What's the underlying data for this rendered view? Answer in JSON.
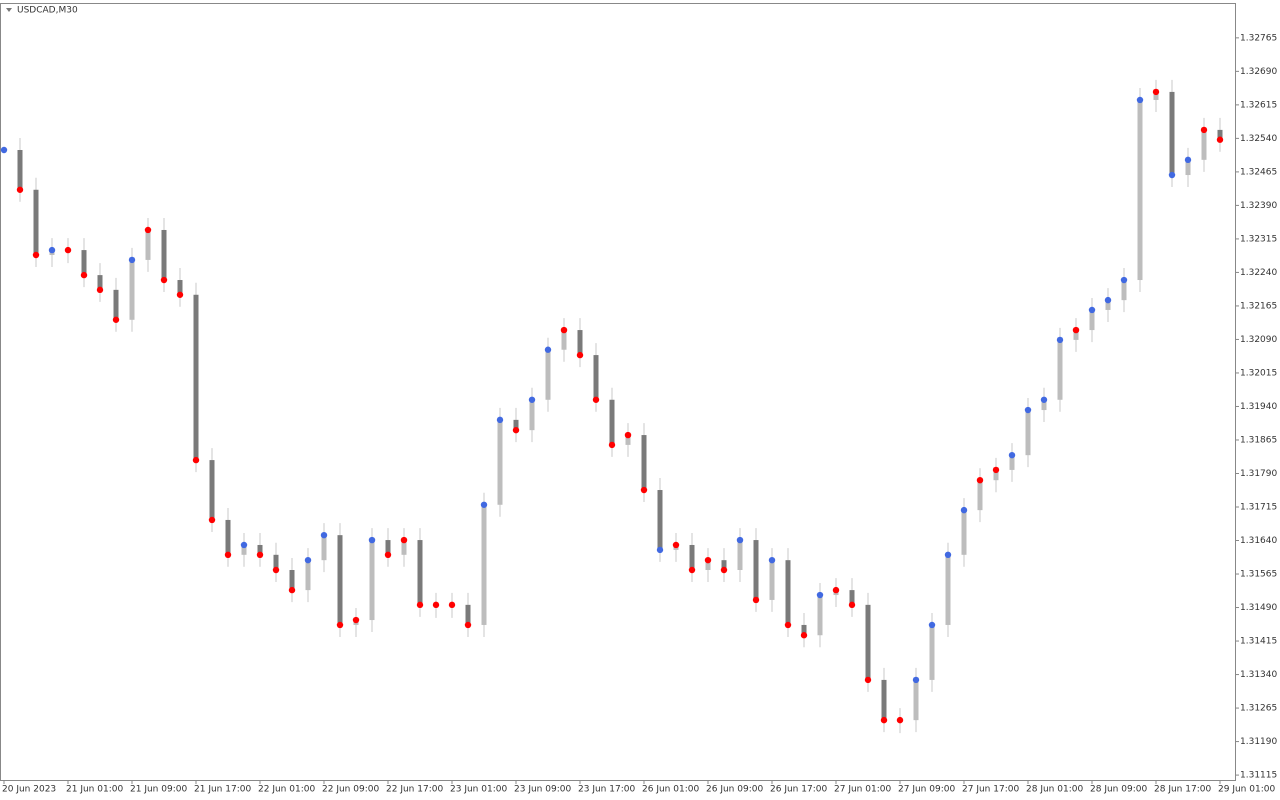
{
  "chart_data": {
    "type": "candlestick",
    "title": "USDCAD,M30",
    "categories": [
      "20 Jun 2023",
      null,
      null,
      null,
      "21 Jun 01:00",
      null,
      null,
      null,
      "21 Jun 09:00",
      null,
      null,
      null,
      "21 Jun 17:00",
      null,
      null,
      null,
      "22 Jun 01:00",
      null,
      null,
      null,
      "22 Jun 09:00",
      null,
      null,
      null,
      "22 Jun 17:00",
      null,
      null,
      null,
      "23 Jun 01:00",
      null,
      null,
      null,
      "23 Jun 09:00",
      null,
      null,
      null,
      "23 Jun 17:00",
      null,
      null,
      null,
      "26 Jun 01:00",
      null,
      null,
      null,
      "26 Jun 09:00",
      null,
      null,
      null,
      "26 Jun 17:00",
      null,
      null,
      null,
      "27 Jun 01:00",
      null,
      null,
      null,
      "27 Jun 09:00",
      null,
      null,
      null,
      "27 Jun 17:00",
      null,
      null,
      null,
      "28 Jun 01:00",
      null,
      null,
      null,
      "28 Jun 09:00",
      null,
      null,
      null,
      "28 Jun 17:00",
      null,
      null,
      null,
      "29 Jun 01:00"
    ],
    "close": [
      1.32514,
      1.32425,
      1.32279,
      1.3229,
      1.3229,
      1.32234,
      1.32201,
      1.32134,
      1.32268,
      1.32335,
      1.32223,
      1.3219,
      1.3182,
      1.31686,
      1.31608,
      1.3163,
      1.31608,
      1.31574,
      1.31529,
      1.31596,
      1.31652,
      1.31451,
      1.31462,
      1.31641,
      1.31608,
      1.31641,
      1.31496,
      1.31496,
      1.31496,
      1.31451,
      1.3172,
      1.3191,
      1.31887,
      1.31955,
      1.32067,
      1.32111,
      1.32055,
      1.31955,
      1.31854,
      1.31876,
      1.31753,
      1.31619,
      1.3163,
      1.31574,
      1.31596,
      1.31574,
      1.31641,
      1.31507,
      1.31596,
      1.31451,
      1.31428,
      1.31518,
      1.31529,
      1.31496,
      1.31328,
      1.31238,
      1.31238,
      1.31328,
      1.31451,
      1.31608,
      1.31708,
      1.31775,
      1.31798,
      1.31831,
      1.31932,
      1.31955,
      1.32089,
      1.32111,
      1.32156,
      1.32178,
      1.32223,
      1.32626,
      1.32644,
      1.32458,
      1.32492,
      1.32559,
      1.32537
    ],
    "trend": [
      "up",
      "down",
      "down",
      "up",
      "down",
      "down",
      "down",
      "down",
      "up",
      "down",
      "down",
      "down",
      "down",
      "down",
      "down",
      "up",
      "down",
      "down",
      "down",
      "up",
      "up",
      "down",
      "down",
      "up",
      "down",
      "down",
      "down",
      "down",
      "down",
      "down",
      "up",
      "up",
      "down",
      "up",
      "up",
      "down",
      "down",
      "down",
      "down",
      "down",
      "down",
      "up",
      "down",
      "down",
      "down",
      "down",
      "up",
      "down",
      "up",
      "down",
      "down",
      "up",
      "down",
      "down",
      "down",
      "down",
      "down",
      "up",
      "up",
      "up",
      "up",
      "down",
      "down",
      "up",
      "up",
      "up",
      "up",
      "down",
      "up",
      "up",
      "up",
      "up",
      "down",
      "up",
      "up",
      "down",
      "down"
    ],
    "up_color": "#4169e1",
    "down_color": "#ff0000",
    "up_bar_color": "#bdbdbd",
    "down_bar_color": "#7a7a7a",
    "ylim": [
      1.31104,
      1.32843
    ],
    "yticks": [
      1.31115,
      {
        "value": 1.3119,
        "label": "1.31190"
      },
      1.31265,
      {
        "value": 1.3134,
        "label": "1.31340"
      },
      1.31415,
      {
        "value": 1.3149,
        "label": "1.31490"
      },
      1.31565,
      {
        "value": 1.3164,
        "label": "1.31640"
      },
      1.31715,
      {
        "value": 1.3179,
        "label": "1.31790"
      },
      1.31865,
      {
        "value": 1.3194,
        "label": "1.31940"
      },
      1.32015,
      {
        "value": 1.3209,
        "label": "1.32090"
      },
      1.32165,
      {
        "value": 1.3224,
        "label": "1.32240"
      },
      1.32315,
      {
        "value": 1.3239,
        "label": "1.32390"
      },
      1.32465,
      {
        "value": 1.3254,
        "label": "1.32540"
      },
      1.32615,
      {
        "value": 1.3269,
        "label": "1.32690"
      },
      1.32765
    ]
  }
}
